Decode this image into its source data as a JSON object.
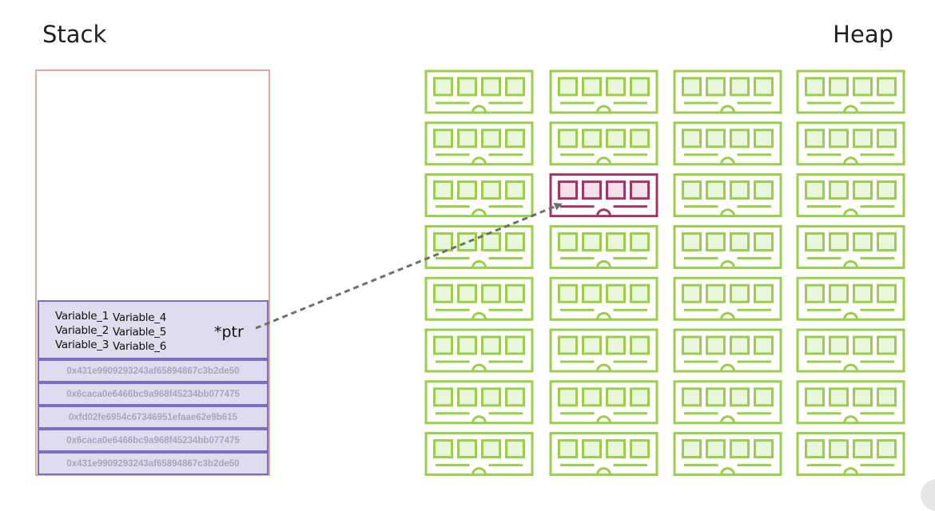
{
  "stack": {
    "title": "Stack",
    "frame": {
      "variables_col1": [
        "Variable_1",
        "Variable_2",
        "Variable_3"
      ],
      "variables_col2": [
        "Variable_4",
        "Variable_5",
        "Variable_6"
      ],
      "pointer_label": "*ptr"
    },
    "addresses": [
      "0x431e9909293243af65894867c3b2de50",
      "0x6cacа0e6466bc9a968f45234bb077475",
      "0xfd02fe6954c67346951efaae62e9b615",
      "0x6caca0e6466bc9a968f45234bb077475",
      "0x431e9909293243af65894867c3b2de50"
    ]
  },
  "heap": {
    "title": "Heap",
    "rows": 8,
    "cols": 4,
    "highlighted": {
      "row": 2,
      "col": 1
    },
    "colors": {
      "normal_stroke": "#9acd4a",
      "normal_fill": "#eaf6dc",
      "highlight_stroke": "#a33464",
      "highlight_fill": "#f6e0ea"
    }
  },
  "arrow": {
    "color": "#6e6e6e",
    "style": "dashed"
  }
}
